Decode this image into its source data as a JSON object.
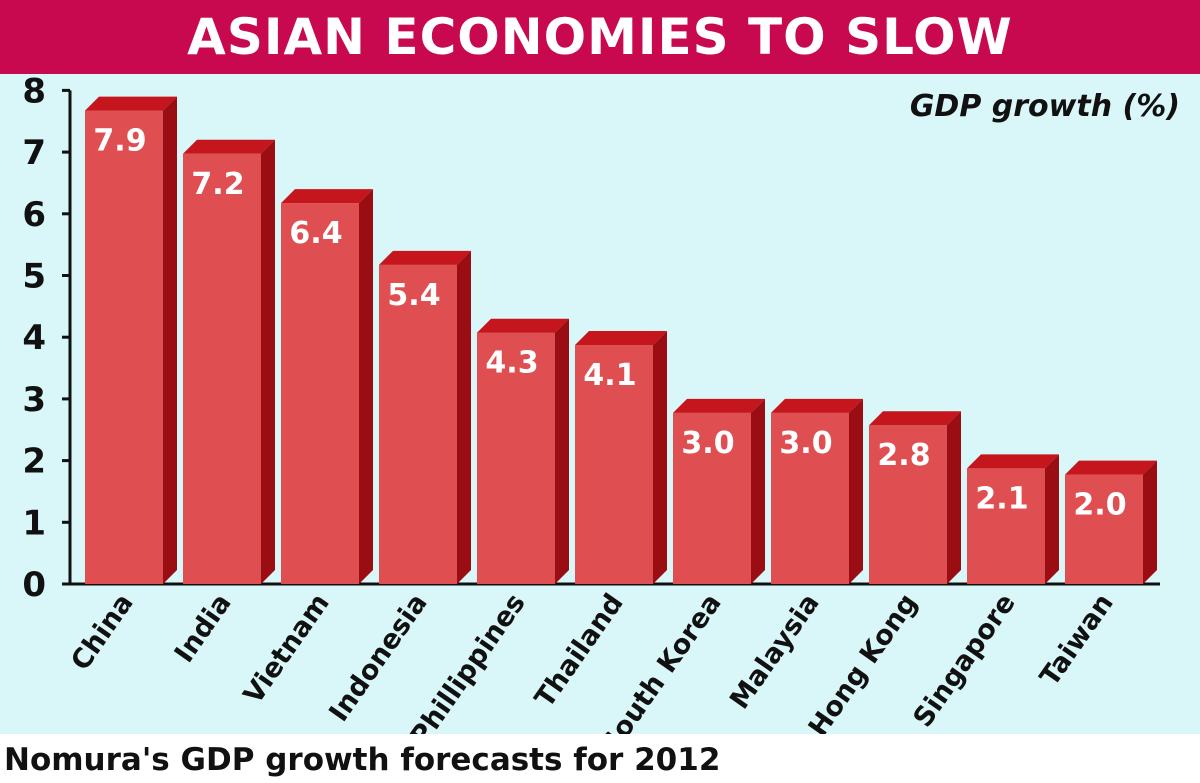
{
  "title": "ASIAN ECONOMIES TO SLOW",
  "footer": "Nomura's GDP growth forecasts for 2012",
  "colors": {
    "title_bg": "#c8094f",
    "plot_bg": "#d9f6f8",
    "bar_front": "#df4f52",
    "bar_top": "#c4161c",
    "bar_side": "#9a0d13"
  },
  "chart_data": {
    "type": "bar",
    "title": "ASIAN ECONOMIES TO SLOW",
    "ylabel": "GDP growth (%)",
    "xlabel": "",
    "ylim": [
      0,
      8
    ],
    "yticks": [
      0,
      1,
      2,
      3,
      4,
      5,
      6,
      7,
      8
    ],
    "grid": false,
    "categories": [
      "China",
      "India",
      "Vietnam",
      "Indonesia",
      "Phillippines",
      "Thailand",
      "South Korea",
      "Malaysia",
      "Hong Kong",
      "Singapore",
      "Taiwan"
    ],
    "values": [
      7.9,
      7.2,
      6.4,
      5.4,
      4.3,
      4.1,
      3.0,
      3.0,
      2.8,
      2.1,
      2.0
    ],
    "value_labels": [
      "7.9",
      "7.2",
      "6.4",
      "5.4",
      "4.3",
      "4.1",
      "3.0",
      "3.0",
      "2.8",
      "2.1",
      "2.0"
    ]
  }
}
